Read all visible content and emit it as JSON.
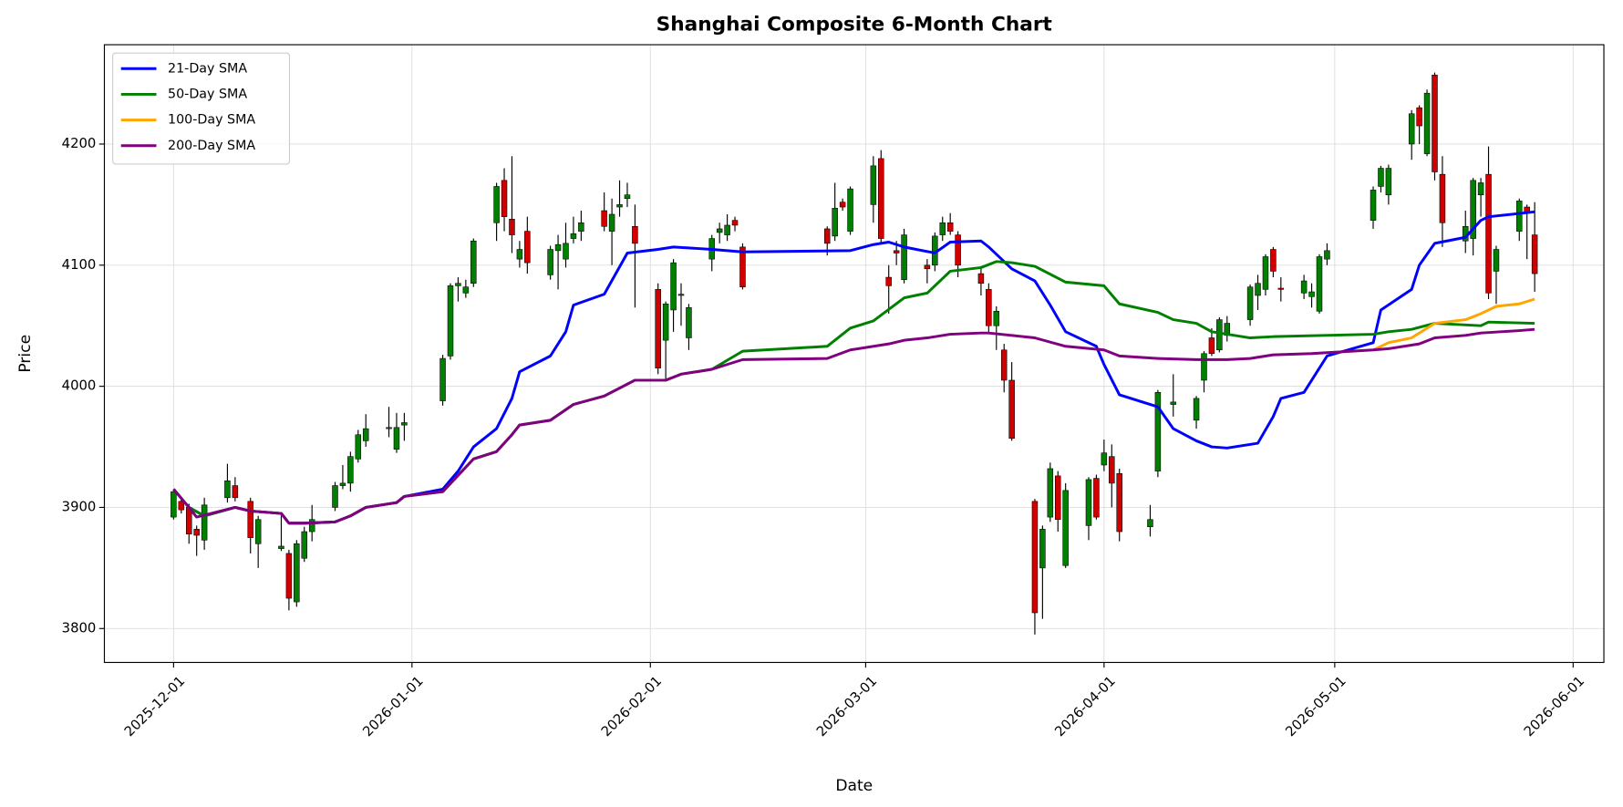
{
  "chart_data": {
    "type": "candlestick",
    "title": "Shanghai Composite 6-Month Chart",
    "x_label": "Date",
    "y_label": "Price",
    "x": [
      "2025-12-01",
      "2025-12-02",
      "2025-12-03",
      "2025-12-04",
      "2025-12-05",
      "2025-12-08",
      "2025-12-09",
      "2025-12-11",
      "2025-12-12",
      "2025-12-15",
      "2025-12-16",
      "2025-12-17",
      "2025-12-18",
      "2025-12-19",
      "2025-12-22",
      "2025-12-23",
      "2025-12-24",
      "2025-12-25",
      "2025-12-26",
      "2025-12-29",
      "2025-12-30",
      "2025-12-31",
      "2026-01-05",
      "2026-01-06",
      "2026-01-07",
      "2026-01-08",
      "2026-01-09",
      "2026-01-12",
      "2026-01-13",
      "2026-01-14",
      "2026-01-15",
      "2026-01-16",
      "2026-01-19",
      "2026-01-20",
      "2026-01-21",
      "2026-01-22",
      "2026-01-23",
      "2026-01-26",
      "2026-01-27",
      "2026-01-28",
      "2026-01-29",
      "2026-01-30",
      "2026-02-02",
      "2026-02-03",
      "2026-02-04",
      "2026-02-05",
      "2026-02-06",
      "2026-02-09",
      "2026-02-10",
      "2026-02-11",
      "2026-02-12",
      "2026-02-13",
      "2026-02-24",
      "2026-02-25",
      "2026-02-26",
      "2026-02-27",
      "2026-03-02",
      "2026-03-03",
      "2026-03-04",
      "2026-03-05",
      "2026-03-06",
      "2026-03-09",
      "2026-03-10",
      "2026-03-11",
      "2026-03-12",
      "2026-03-13",
      "2026-03-16",
      "2026-03-17",
      "2026-03-18",
      "2026-03-19",
      "2026-03-20",
      "2026-03-23",
      "2026-03-24",
      "2026-03-25",
      "2026-03-26",
      "2026-03-27",
      "2026-03-30",
      "2026-03-31",
      "2026-04-01",
      "2026-04-02",
      "2026-04-03",
      "2026-04-07",
      "2026-04-08",
      "2026-04-10",
      "2026-04-13",
      "2026-04-14",
      "2026-04-15",
      "2026-04-16",
      "2026-04-17",
      "2026-04-20",
      "2026-04-21",
      "2026-04-22",
      "2026-04-23",
      "2026-04-24",
      "2026-04-27",
      "2026-04-28",
      "2026-04-29",
      "2026-04-30",
      "2026-05-06",
      "2026-05-07",
      "2026-05-08",
      "2026-05-11",
      "2026-05-12",
      "2026-05-13",
      "2026-05-14",
      "2026-05-15",
      "2026-05-18",
      "2026-05-19",
      "2026-05-20",
      "2026-05-21",
      "2026-05-22",
      "2026-05-25",
      "2026-05-26",
      "2026-05-27"
    ],
    "open": [
      3892,
      3905,
      3900,
      3882,
      3873,
      3908,
      3918,
      3905,
      3870,
      3866,
      3862,
      3822,
      3858,
      3880,
      3900,
      3918,
      3920,
      3940,
      3955,
      3965,
      3948,
      3968,
      3988,
      4025,
      4083,
      4077,
      4085,
      4135,
      4170,
      4138,
      4105,
      4128,
      4092,
      4112,
      4105,
      4122,
      4128,
      4145,
      4128,
      4148,
      4155,
      4132,
      4080,
      4038,
      4063,
      4075,
      4040,
      4105,
      4127,
      4125,
      4137,
      4115,
      4130,
      4124,
      4152,
      4128,
      4150,
      4188,
      4090,
      4112,
      4088,
      4100,
      4100,
      4125,
      4135,
      4125,
      4093,
      4080,
      4050,
      4030,
      4005,
      3905,
      3850,
      3892,
      3926,
      3852,
      3885,
      3924,
      3935,
      3942,
      3928,
      3884,
      3930,
      3985,
      3972,
      4005,
      4040,
      4030,
      4042,
      4055,
      4075,
      4080,
      4113,
      4081,
      4077,
      4074,
      4062,
      4105,
      4137,
      4165,
      4158,
      4200,
      4230,
      4192,
      4257,
      4175,
      4120,
      4122,
      4158,
      4175,
      4095,
      4128,
      4148,
      4125
    ],
    "high": [
      3915,
      3908,
      3903,
      3885,
      3908,
      3936,
      3925,
      3908,
      3893,
      3895,
      3865,
      3873,
      3884,
      3902,
      3921,
      3935,
      3946,
      3964,
      3977,
      3983,
      3978,
      3978,
      4026,
      4085,
      4090,
      4088,
      4122,
      4168,
      4180,
      4190,
      4120,
      4140,
      4116,
      4125,
      4135,
      4140,
      4145,
      4160,
      4155,
      4170,
      4168,
      4150,
      4085,
      4070,
      4105,
      4085,
      4068,
      4125,
      4135,
      4142,
      4140,
      4118,
      4132,
      4168,
      4155,
      4165,
      4190,
      4195,
      4100,
      4120,
      4130,
      4105,
      4127,
      4140,
      4143,
      4128,
      4098,
      4085,
      4066,
      4035,
      4020,
      3907,
      3885,
      3937,
      3930,
      3920,
      3925,
      3927,
      3956,
      3952,
      3932,
      3902,
      3997,
      4010,
      3992,
      4029,
      4048,
      4057,
      4058,
      4084,
      4092,
      4109,
      4115,
      4090,
      4092,
      4085,
      4109,
      4118,
      4165,
      4182,
      4183,
      4228,
      4232,
      4245,
      4259,
      4190,
      4145,
      4172,
      4172,
      4198,
      4116,
      4155,
      4150,
      4152
    ],
    "low": [
      3890,
      3895,
      3870,
      3860,
      3865,
      3904,
      3905,
      3862,
      3850,
      3864,
      3815,
      3818,
      3855,
      3872,
      3897,
      3915,
      3913,
      3937,
      3950,
      3958,
      3945,
      3955,
      3984,
      4022,
      4070,
      4073,
      4082,
      4120,
      4128,
      4110,
      4098,
      4093,
      4088,
      4080,
      4098,
      4118,
      4120,
      4128,
      4100,
      4140,
      4148,
      4065,
      4010,
      4005,
      4045,
      4050,
      4030,
      4095,
      4118,
      4120,
      4128,
      4080,
      4108,
      4120,
      4145,
      4125,
      4135,
      4118,
      4060,
      4100,
      4085,
      4085,
      4095,
      4120,
      4125,
      4090,
      4075,
      4045,
      4030,
      3995,
      3955,
      3795,
      3808,
      3888,
      3880,
      3850,
      3873,
      3890,
      3930,
      3900,
      3872,
      3876,
      3925,
      3975,
      3965,
      3995,
      4025,
      4028,
      4037,
      4050,
      4063,
      4075,
      4090,
      4070,
      4072,
      4065,
      4060,
      4100,
      4130,
      4160,
      4150,
      4187,
      4200,
      4190,
      4170,
      4115,
      4110,
      4108,
      4140,
      4072,
      4068,
      4120,
      4105,
      4078
    ],
    "close": [
      3913,
      3898,
      3878,
      3877,
      3902,
      3922,
      3908,
      3875,
      3890,
      3868,
      3825,
      3870,
      3880,
      3890,
      3918,
      3920,
      3942,
      3960,
      3965,
      3966,
      3966,
      3970,
      4023,
      4083,
      4085,
      4082,
      4120,
      4165,
      4140,
      4125,
      4113,
      4102,
      4113,
      4117,
      4118,
      4126,
      4135,
      4132,
      4142,
      4150,
      4158,
      4118,
      4015,
      4068,
      4102,
      4076,
      4065,
      4122,
      4130,
      4133,
      4133,
      4082,
      4118,
      4147,
      4148,
      4163,
      4182,
      4122,
      4083,
      4110,
      4125,
      4097,
      4124,
      4135,
      4128,
      4100,
      4085,
      4050,
      4062,
      4005,
      3957,
      3813,
      3882,
      3932,
      3890,
      3914,
      3923,
      3892,
      3945,
      3920,
      3880,
      3890,
      3995,
      3987,
      3990,
      4027,
      4027,
      4055,
      4052,
      4082,
      4085,
      4107,
      4095,
      4080,
      4087,
      4078,
      4107,
      4112,
      4162,
      4180,
      4180,
      4225,
      4215,
      4242,
      4177,
      4135,
      4132,
      4170,
      4168,
      4077,
      4113,
      4153,
      4143,
      4093
    ],
    "up_color": "green",
    "down_color": "#d00000",
    "series": [
      {
        "name": "21-Day SMA",
        "color": "blue",
        "x": [
          "2025-12-01",
          "2025-12-03",
          "2025-12-05",
          "2025-12-09",
          "2025-12-11",
          "2025-12-15",
          "2025-12-16",
          "2025-12-18",
          "2025-12-22",
          "2025-12-24",
          "2025-12-26",
          "2025-12-30",
          "2025-12-31",
          "2026-01-05",
          "2026-01-07",
          "2026-01-09",
          "2026-01-12",
          "2026-01-14",
          "2026-01-15",
          "2026-01-19",
          "2026-01-21",
          "2026-01-22",
          "2026-01-26",
          "2026-01-29",
          "2026-02-02",
          "2026-02-04",
          "2026-02-09",
          "2026-02-13",
          "2026-02-27",
          "2026-03-02",
          "2026-03-04",
          "2026-03-06",
          "2026-03-10",
          "2026-03-12",
          "2026-03-16",
          "2026-03-17",
          "2026-03-20",
          "2026-03-23",
          "2026-03-25",
          "2026-03-27",
          "2026-03-31",
          "2026-04-01",
          "2026-04-03",
          "2026-04-08",
          "2026-04-10",
          "2026-04-13",
          "2026-04-15",
          "2026-04-17",
          "2026-04-21",
          "2026-04-23",
          "2026-04-24",
          "2026-04-27",
          "2026-04-29",
          "2026-04-30",
          "2026-05-06",
          "2026-05-07",
          "2026-05-11",
          "2026-05-12",
          "2026-05-14",
          "2026-05-18",
          "2026-05-20",
          "2026-05-21",
          "2026-05-27"
        ],
        "values": [
          3915,
          3900,
          3893,
          3900,
          3897,
          3895,
          3887,
          3887,
          3888,
          3893,
          3900,
          3904,
          3909,
          3915,
          3930,
          3950,
          3965,
          3990,
          4012,
          4025,
          4045,
          4067,
          4076,
          4110,
          4113,
          4115,
          4113,
          4111,
          4112,
          4117,
          4119,
          4115,
          4110,
          4119,
          4120,
          4115,
          4097,
          4087,
          4067,
          4045,
          4033,
          4018,
          3993,
          3983,
          3965,
          3955,
          3950,
          3949,
          3953,
          3975,
          3990,
          3995,
          4015,
          4025,
          4036,
          4063,
          4080,
          4100,
          4118,
          4123,
          4137,
          4140,
          4144
        ]
      },
      {
        "name": "50-Day SMA",
        "color": "green",
        "x": [
          "2025-12-01",
          "2025-12-03",
          "2025-12-05",
          "2025-12-09",
          "2025-12-11",
          "2025-12-15",
          "2025-12-16",
          "2025-12-18",
          "2025-12-22",
          "2025-12-24",
          "2025-12-26",
          "2025-12-30",
          "2025-12-31",
          "2026-01-05",
          "2026-01-09",
          "2026-01-12",
          "2026-01-14",
          "2026-01-15",
          "2026-01-19",
          "2026-01-22",
          "2026-01-26",
          "2026-01-30",
          "2026-02-03",
          "2026-02-05",
          "2026-02-09",
          "2026-02-13",
          "2026-02-24",
          "2026-02-27",
          "2026-03-02",
          "2026-03-06",
          "2026-03-09",
          "2026-03-12",
          "2026-03-16",
          "2026-03-18",
          "2026-03-20",
          "2026-03-23",
          "2026-03-27",
          "2026-04-01",
          "2026-04-03",
          "2026-04-08",
          "2026-04-10",
          "2026-04-13",
          "2026-04-15",
          "2026-04-20",
          "2026-04-23",
          "2026-05-06",
          "2026-05-08",
          "2026-05-11",
          "2026-05-14",
          "2026-05-20",
          "2026-05-21",
          "2026-05-27"
        ],
        "values": [
          3915,
          3900,
          3893,
          3900,
          3897,
          3895,
          3887,
          3887,
          3888,
          3893,
          3900,
          3904,
          3909,
          3913,
          3940,
          3946,
          3960,
          3968,
          3972,
          3985,
          3992,
          4005,
          4005,
          4010,
          4014,
          4029,
          4033,
          4048,
          4054,
          4073,
          4077,
          4095,
          4098,
          4103,
          4102,
          4099,
          4086,
          4083,
          4068,
          4061,
          4055,
          4052,
          4045,
          4040,
          4041,
          4043,
          4045,
          4047,
          4052,
          4050,
          4053,
          4052
        ]
      },
      {
        "name": "100-Day SMA",
        "color": "orange",
        "x": [
          "2026-05-06",
          "2026-05-08",
          "2026-05-11",
          "2026-05-14",
          "2026-05-18",
          "2026-05-20",
          "2026-05-22",
          "2026-05-25",
          "2026-05-27"
        ],
        "values": [
          4030,
          4036,
          4040,
          4052,
          4055,
          4060,
          4066,
          4068,
          4072
        ]
      },
      {
        "name": "200-Day SMA",
        "color": "purple",
        "x": [
          "2025-12-01",
          "2025-12-03",
          "2025-12-04",
          "2025-12-09",
          "2025-12-11",
          "2025-12-15",
          "2025-12-16",
          "2025-12-18",
          "2025-12-22",
          "2025-12-24",
          "2025-12-26",
          "2025-12-30",
          "2025-12-31",
          "2026-01-05",
          "2026-01-09",
          "2026-01-12",
          "2026-01-14",
          "2026-01-15",
          "2026-01-19",
          "2026-01-22",
          "2026-01-26",
          "2026-01-30",
          "2026-02-03",
          "2026-02-05",
          "2026-02-09",
          "2026-02-13",
          "2026-02-24",
          "2026-02-27",
          "2026-03-04",
          "2026-03-06",
          "2026-03-09",
          "2026-03-12",
          "2026-03-16",
          "2026-03-17",
          "2026-03-23",
          "2026-03-27",
          "2026-04-01",
          "2026-04-03",
          "2026-04-08",
          "2026-04-13",
          "2026-04-17",
          "2026-04-20",
          "2026-04-23",
          "2026-04-28",
          "2026-05-06",
          "2026-05-08",
          "2026-05-12",
          "2026-05-14",
          "2026-05-18",
          "2026-05-20",
          "2026-05-25",
          "2026-05-27"
        ],
        "values": [
          3915,
          3900,
          3892,
          3900,
          3897,
          3895,
          3887,
          3887,
          3888,
          3893,
          3900,
          3904,
          3909,
          3913,
          3940,
          3946,
          3960,
          3968,
          3972,
          3985,
          3992,
          4005,
          4005,
          4010,
          4014,
          4022,
          4023,
          4030,
          4035,
          4038,
          4040,
          4043,
          4044,
          4044,
          4040,
          4033,
          4030,
          4025,
          4023,
          4022,
          4022,
          4023,
          4026,
          4027,
          4030,
          4031,
          4035,
          4040,
          4042,
          4044,
          4046,
          4047
        ]
      }
    ],
    "xlim": [
      "2025-11-22",
      "2026-06-05"
    ],
    "xticks": [
      "2025-12-01",
      "2026-01-01",
      "2026-02-01",
      "2026-03-01",
      "2026-04-01",
      "2026-05-01",
      "2026-06-01"
    ],
    "ylim": [
      3772,
      4282
    ],
    "yticks": [
      3800,
      3900,
      4000,
      4100,
      4200
    ],
    "grid": true,
    "legend": "upper left"
  }
}
